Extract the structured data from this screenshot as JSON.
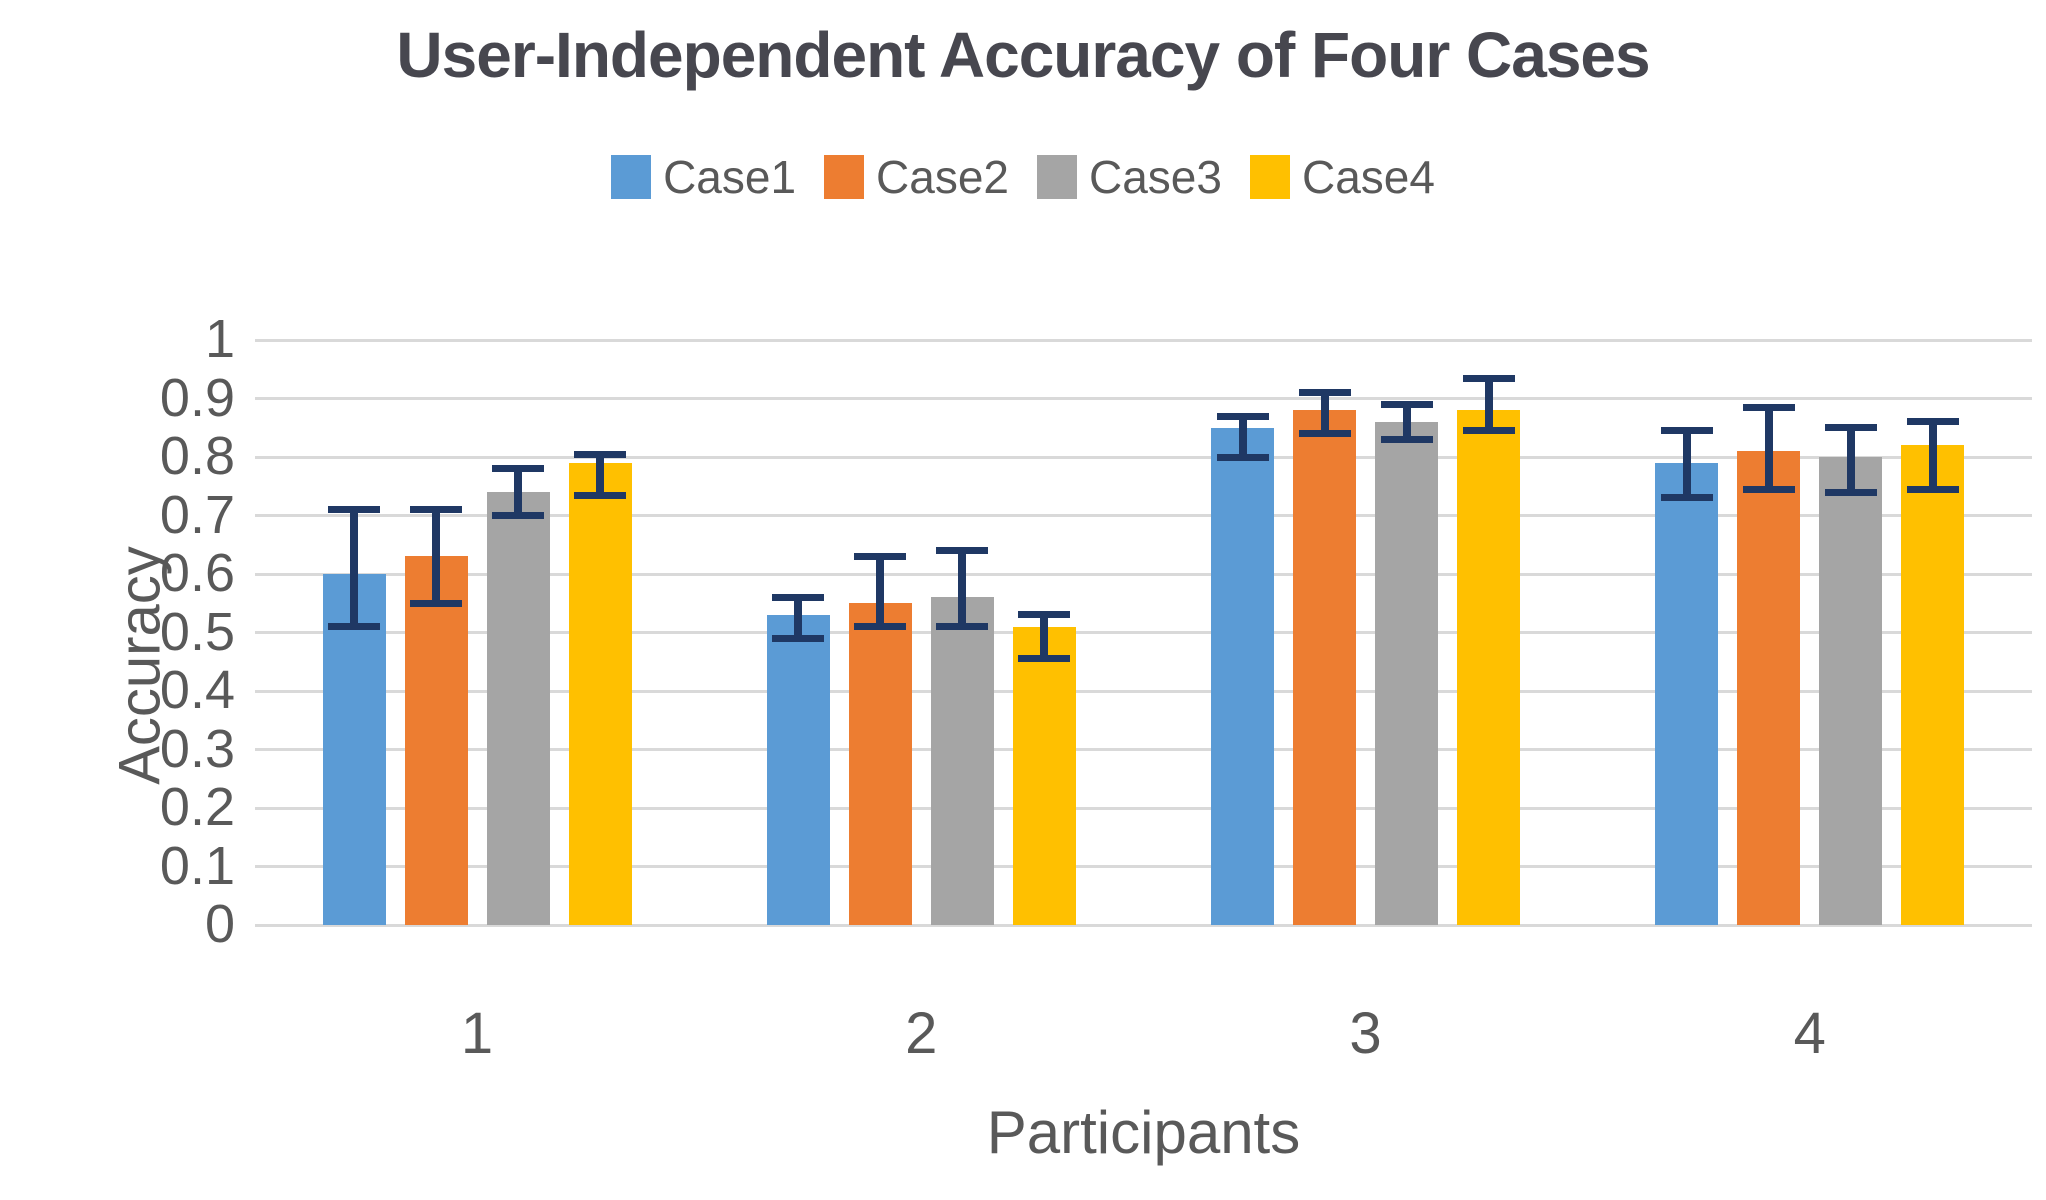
{
  "title": "User-Independent Accuracy of Four Cases",
  "chart_data": {
    "type": "bar",
    "title": "User-Independent Accuracy of Four Cases",
    "xlabel": "Participants",
    "ylabel": "Accuracy",
    "categories": [
      "1",
      "2",
      "3",
      "4"
    ],
    "ylim": [
      0,
      1
    ],
    "y_ticks": [
      "1",
      "0.9",
      "0.8",
      "0.7",
      "0.6",
      "0.5",
      "0.4",
      "0.3",
      "0.2",
      "0.1",
      "0"
    ],
    "grid": true,
    "legend_position": "top-center",
    "legend_entries": [
      "Case1",
      "Case2",
      "Case3",
      "Case4"
    ],
    "error_bar_color": "#1F3864",
    "series": [
      {
        "name": "Case1",
        "color": "#5B9BD5",
        "values": [
          0.6,
          0.53,
          0.85,
          0.79
        ],
        "error_low": [
          0.51,
          0.49,
          0.8,
          0.73
        ],
        "error_high": [
          0.71,
          0.56,
          0.87,
          0.845
        ]
      },
      {
        "name": "Case2",
        "color": "#ED7D31",
        "values": [
          0.63,
          0.55,
          0.88,
          0.81
        ],
        "error_low": [
          0.55,
          0.51,
          0.84,
          0.745
        ],
        "error_high": [
          0.71,
          0.63,
          0.91,
          0.885
        ]
      },
      {
        "name": "Case3",
        "color": "#A5A5A5",
        "values": [
          0.74,
          0.56,
          0.86,
          0.8
        ],
        "error_low": [
          0.7,
          0.51,
          0.83,
          0.74
        ],
        "error_high": [
          0.78,
          0.64,
          0.89,
          0.85
        ]
      },
      {
        "name": "Case4",
        "color": "#FFC000",
        "values": [
          0.79,
          0.51,
          0.88,
          0.82
        ],
        "error_low": [
          0.735,
          0.455,
          0.845,
          0.745
        ],
        "error_high": [
          0.805,
          0.53,
          0.935,
          0.86
        ]
      }
    ]
  },
  "colors": {
    "background": "#FFFFFF",
    "gridline": "#D9D9D9",
    "axis_text": "#595959",
    "title_text": "#47474F"
  }
}
